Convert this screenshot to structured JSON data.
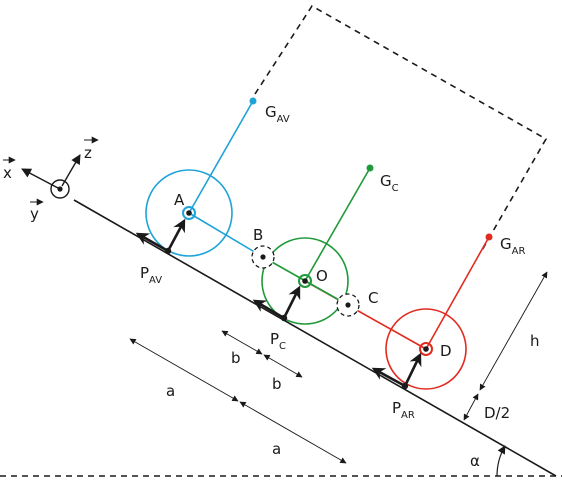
{
  "colors": {
    "front": "#1ea3d9",
    "middle": "#1f9a3a",
    "rear": "#e02b20",
    "ink": "#1a1a1a"
  },
  "axes": {
    "x_label": "x",
    "y_label": "y",
    "z_label": "z"
  },
  "points": {
    "A": "A",
    "B": "B",
    "O": "O",
    "C": "C",
    "D": "D",
    "P_main": "P",
    "P_AV_sub": "AV",
    "P_C_sub": "C",
    "P_AR_sub": "AR",
    "G_main": "G",
    "G_AV_sub": "AV",
    "G_C_sub": "C",
    "G_AR_sub": "AR"
  },
  "dimensions": {
    "a1": "a",
    "a2": "a",
    "b1": "b",
    "b2": "b",
    "h": "h",
    "d_half": "D/2",
    "alpha": "α"
  }
}
